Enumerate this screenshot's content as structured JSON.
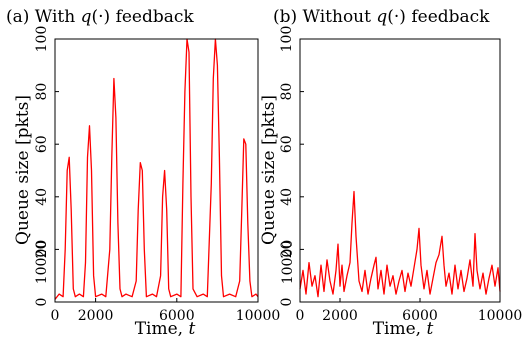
{
  "chart_data": [
    {
      "type": "line",
      "title_prefix": "(a) With ",
      "title_var": "q",
      "title_suffix": "(·) feedback",
      "xlabel_text": "Time, ",
      "xlabel_var": "t",
      "ylabel": "Queue size [pkts]",
      "xlim": [
        0,
        10000
      ],
      "ylim": [
        0,
        100
      ],
      "xticks": [
        0,
        2000,
        6000,
        10000
      ],
      "yticks": [
        0,
        20,
        40,
        60,
        80,
        100
      ],
      "extra_ytick_label": "10000",
      "grid": false,
      "color": "#ff0000",
      "series": [
        {
          "x": [
            0,
            200,
            400,
            500,
            600,
            700,
            800,
            900,
            1000,
            1200,
            1400,
            1500,
            1600,
            1700,
            1800,
            1900,
            2000,
            2300,
            2500,
            2700,
            2800,
            2900,
            3000,
            3100,
            3200,
            3300,
            3500,
            3800,
            4000,
            4100,
            4200,
            4300,
            4400,
            4500,
            4800,
            5000,
            5200,
            5300,
            5400,
            5500,
            5600,
            5700,
            6000,
            6200,
            6300,
            6400,
            6500,
            6600,
            6700,
            6800,
            7000,
            7300,
            7500,
            7700,
            7800,
            7900,
            8000,
            8100,
            8200,
            8300,
            8600,
            8900,
            9100,
            9200,
            9300,
            9400,
            9500,
            9600,
            9700,
            9900,
            10000
          ],
          "y": [
            1,
            3,
            2,
            20,
            50,
            55,
            35,
            5,
            2,
            3,
            2,
            15,
            55,
            67,
            50,
            10,
            2,
            3,
            2,
            20,
            55,
            85,
            70,
            30,
            5,
            2,
            3,
            2,
            8,
            35,
            53,
            50,
            20,
            2,
            3,
            2,
            10,
            40,
            50,
            35,
            5,
            2,
            3,
            2,
            45,
            80,
            100,
            95,
            40,
            5,
            2,
            3,
            2,
            45,
            85,
            100,
            90,
            55,
            10,
            2,
            3,
            2,
            8,
            35,
            62,
            60,
            30,
            8,
            2,
            3,
            2
          ]
        }
      ]
    },
    {
      "type": "line",
      "title_prefix": "(b) Without ",
      "title_var": "q",
      "title_suffix": "(·) feedback",
      "xlabel_text": "Time, ",
      "xlabel_var": "t",
      "ylabel": "Queue size [pkts]",
      "xlim": [
        0,
        10000
      ],
      "ylim": [
        0,
        100
      ],
      "xticks": [
        0,
        2000,
        6000,
        10000
      ],
      "yticks": [
        0,
        20,
        40,
        60,
        80,
        100
      ],
      "extra_ytick_label": "10000",
      "grid": false,
      "color": "#ff0000",
      "series": [
        {
          "x": [
            0,
            150,
            300,
            450,
            600,
            750,
            900,
            1050,
            1200,
            1350,
            1500,
            1650,
            1800,
            1900,
            2000,
            2100,
            2200,
            2350,
            2500,
            2600,
            2700,
            2800,
            2950,
            3100,
            3250,
            3400,
            3550,
            3700,
            3800,
            3900,
            4050,
            4200,
            4350,
            4500,
            4650,
            4800,
            4950,
            5100,
            5250,
            5400,
            5550,
            5700,
            5850,
            5950,
            6050,
            6200,
            6350,
            6500,
            6650,
            6800,
            6950,
            7100,
            7200,
            7300,
            7450,
            7600,
            7750,
            7900,
            8050,
            8200,
            8350,
            8500,
            8650,
            8750,
            8850,
            9000,
            9150,
            9300,
            9450,
            9600,
            9750,
            9900,
            10000
          ],
          "y": [
            5,
            12,
            3,
            15,
            6,
            10,
            2,
            14,
            4,
            16,
            8,
            3,
            12,
            22,
            6,
            14,
            4,
            10,
            15,
            30,
            42,
            25,
            8,
            4,
            12,
            3,
            9,
            14,
            17,
            5,
            12,
            3,
            14,
            6,
            10,
            3,
            8,
            12,
            4,
            11,
            6,
            13,
            20,
            28,
            14,
            5,
            12,
            3,
            9,
            15,
            18,
            25,
            14,
            6,
            11,
            3,
            14,
            5,
            12,
            4,
            9,
            16,
            6,
            26,
            12,
            5,
            11,
            3,
            9,
            14,
            6,
            13,
            4
          ]
        }
      ]
    }
  ]
}
